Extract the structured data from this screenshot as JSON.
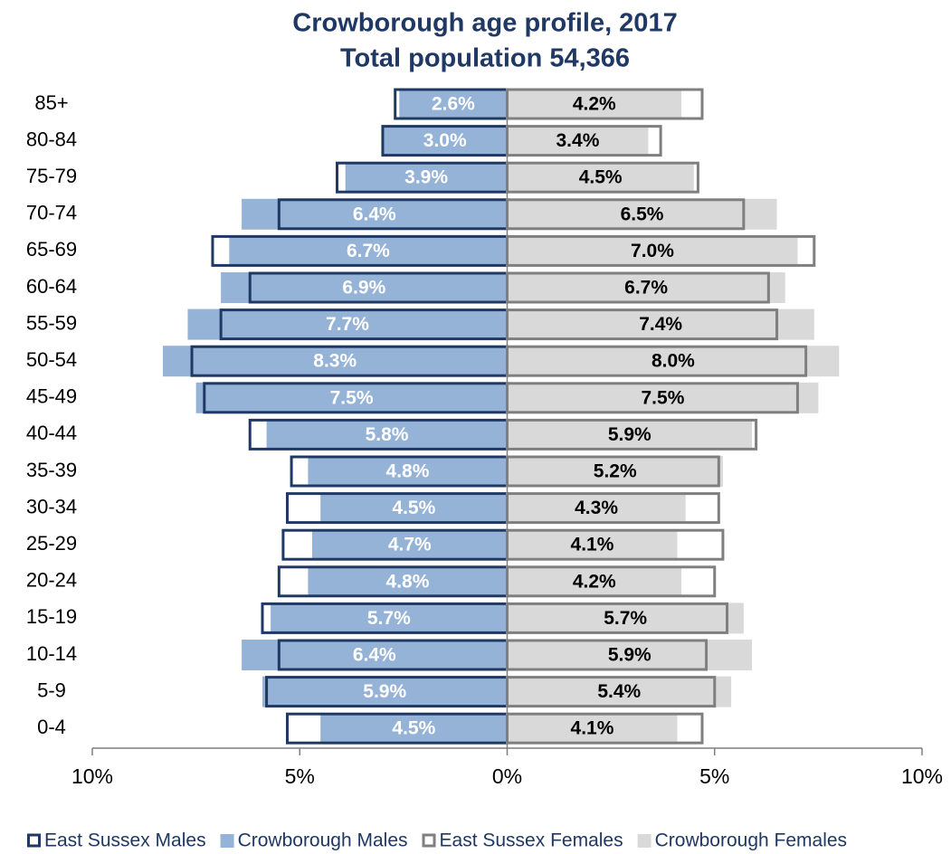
{
  "chart_data": {
    "type": "pyramid",
    "title": "Crowborough age profile, 2017",
    "subtitle": "Total population 54,366",
    "categories": [
      "85+",
      "80-84",
      "75-79",
      "70-74",
      "65-69",
      "60-64",
      "55-59",
      "50-54",
      "45-49",
      "40-44",
      "35-39",
      "30-34",
      "25-29",
      "20-24",
      "15-19",
      "10-14",
      "5-9",
      "0-4"
    ],
    "series": [
      {
        "name": "East Sussex Males",
        "color": "#1f3864",
        "style": "outline",
        "side": "left",
        "values": [
          2.7,
          3.0,
          4.1,
          5.5,
          7.1,
          6.2,
          6.9,
          7.6,
          7.3,
          6.2,
          5.2,
          5.3,
          5.4,
          5.5,
          5.9,
          5.5,
          5.8,
          5.3
        ]
      },
      {
        "name": "Crowborough Males",
        "color": "#95b3d7",
        "style": "fill",
        "side": "left",
        "label_color": "#ffffff",
        "values": [
          2.6,
          3.0,
          3.9,
          6.4,
          6.7,
          6.9,
          7.7,
          8.3,
          7.5,
          5.8,
          4.8,
          4.5,
          4.7,
          4.8,
          5.7,
          6.4,
          5.9,
          4.5
        ],
        "value_labels": [
          "2.6%",
          "3.0%",
          "3.9%",
          "6.4%",
          "6.7%",
          "6.9%",
          "7.7%",
          "8.3%",
          "7.5%",
          "5.8%",
          "4.8%",
          "4.5%",
          "4.7%",
          "4.8%",
          "5.7%",
          "6.4%",
          "5.9%",
          "4.5%"
        ]
      },
      {
        "name": "East Sussex Females",
        "color": "#7f7f7f",
        "style": "outline",
        "side": "right",
        "values": [
          4.7,
          3.7,
          4.6,
          5.7,
          7.4,
          6.3,
          6.5,
          7.2,
          7.0,
          6.0,
          5.1,
          5.1,
          5.2,
          5.0,
          5.3,
          4.8,
          5.0,
          4.7
        ]
      },
      {
        "name": "Crowborough Females",
        "color": "#d9d9d9",
        "style": "fill",
        "side": "right",
        "label_color": "#000000",
        "values": [
          4.2,
          3.4,
          4.5,
          6.5,
          7.0,
          6.7,
          7.4,
          8.0,
          7.5,
          5.9,
          5.2,
          4.3,
          4.1,
          4.2,
          5.7,
          5.9,
          5.4,
          4.1
        ],
        "value_labels": [
          "4.2%",
          "3.4%",
          "4.5%",
          "6.5%",
          "7.0%",
          "6.7%",
          "7.4%",
          "8.0%",
          "7.5%",
          "5.9%",
          "5.2%",
          "4.3%",
          "4.1%",
          "4.2%",
          "5.7%",
          "5.9%",
          "5.4%",
          "4.1%"
        ]
      }
    ],
    "xlim": [
      -10,
      10
    ],
    "xticks": [
      {
        "value": -10,
        "label": "10%"
      },
      {
        "value": -5,
        "label": "5%"
      },
      {
        "value": 0,
        "label": "0%"
      },
      {
        "value": 5,
        "label": "5%"
      },
      {
        "value": 10,
        "label": "10%"
      }
    ],
    "legend": "bottom"
  }
}
